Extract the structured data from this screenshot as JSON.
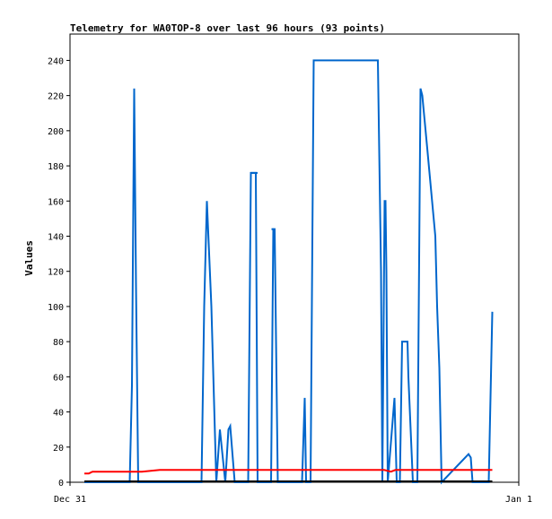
{
  "chart_data": {
    "type": "line",
    "title": "Telemetry for WA0TOP-8 over last 96 hours (93 points)",
    "xlabel": "",
    "ylabel": "Values",
    "x_tick_labels": [
      "Dec 31",
      "Jan 1"
    ],
    "xlim": [
      0,
      100
    ],
    "ylim": [
      0,
      255
    ],
    "y_ticks": [
      0,
      20,
      40,
      60,
      80,
      100,
      120,
      140,
      160,
      180,
      200,
      220,
      240
    ],
    "grid": false,
    "legend": "none",
    "colors": {
      "blue": "#0066cc",
      "red": "#ff0000",
      "black": "#000000",
      "frame": "#000000"
    },
    "series": [
      {
        "color": "#0066cc",
        "x": [
          3.2,
          13.3,
          13.8,
          14.3,
          14.7,
          15.2,
          29.3,
          29.9,
          30.5,
          31.5,
          32.6,
          33.4,
          34.6,
          35.3,
          35.7,
          36.7,
          37.6,
          39.7,
          40.3,
          40.6,
          41.4,
          41.8,
          44.8,
          45.3,
          45.6,
          46.3,
          51.7,
          52.3,
          52.6,
          53.6,
          54.3,
          58.6,
          58.8,
          59.4,
          60.3,
          60.8,
          61.3,
          61.6,
          61.9,
          62.3,
          65.1,
          68.6,
          69.3,
          69.6,
          70.1,
          70.3,
          70.5,
          70.8,
          72.3,
          72.8,
          73.5,
          74.0,
          74.3,
          75.2,
          75.4,
          76.4,
          77.4,
          78.1,
          78.5,
          79.6,
          81.4,
          81.8,
          82.3,
          82.8,
          88.8,
          89.3,
          89.7,
          90.3,
          90.7,
          91.1,
          93.3,
          94.1
        ],
        "values": [
          0,
          0,
          55,
          224,
          113,
          0,
          0,
          100,
          160,
          100,
          0,
          30,
          0,
          30,
          32,
          0,
          0,
          0,
          176,
          176,
          176,
          0,
          0,
          144,
          144,
          0,
          0,
          48,
          0,
          0,
          240,
          240,
          240,
          240,
          240,
          240,
          240,
          240,
          240,
          240,
          240,
          240,
          120,
          0,
          160,
          160,
          120,
          0,
          48,
          0,
          0,
          80,
          80,
          80,
          60,
          0,
          0,
          224,
          220,
          190,
          140,
          100,
          65,
          0,
          16,
          14,
          0,
          0,
          0,
          0,
          0,
          97
        ],
        "dashes": [
          [
            [
              40.3,
              176
            ],
            [
              41.8,
              176
            ]
          ],
          [
            [
              44.9,
              144
            ],
            [
              45.4,
              144
            ]
          ]
        ]
      },
      {
        "color": "#ff0000",
        "x": [
          3.2,
          4.2,
          5.0,
          8.0,
          12.0,
          16.0,
          20.0,
          30.0,
          40.0,
          50.0,
          60.0,
          65.0,
          70.0,
          71.5,
          72.5,
          76.0,
          80.0,
          90.0,
          94.1
        ],
        "values": [
          5,
          5,
          6,
          6,
          6,
          6,
          7,
          7,
          7,
          7,
          7,
          7,
          7,
          6,
          7,
          7,
          7,
          7,
          7
        ]
      },
      {
        "color": "#000000",
        "x": [
          3.2,
          94.1
        ],
        "values": [
          0.5,
          0.5
        ]
      }
    ]
  }
}
